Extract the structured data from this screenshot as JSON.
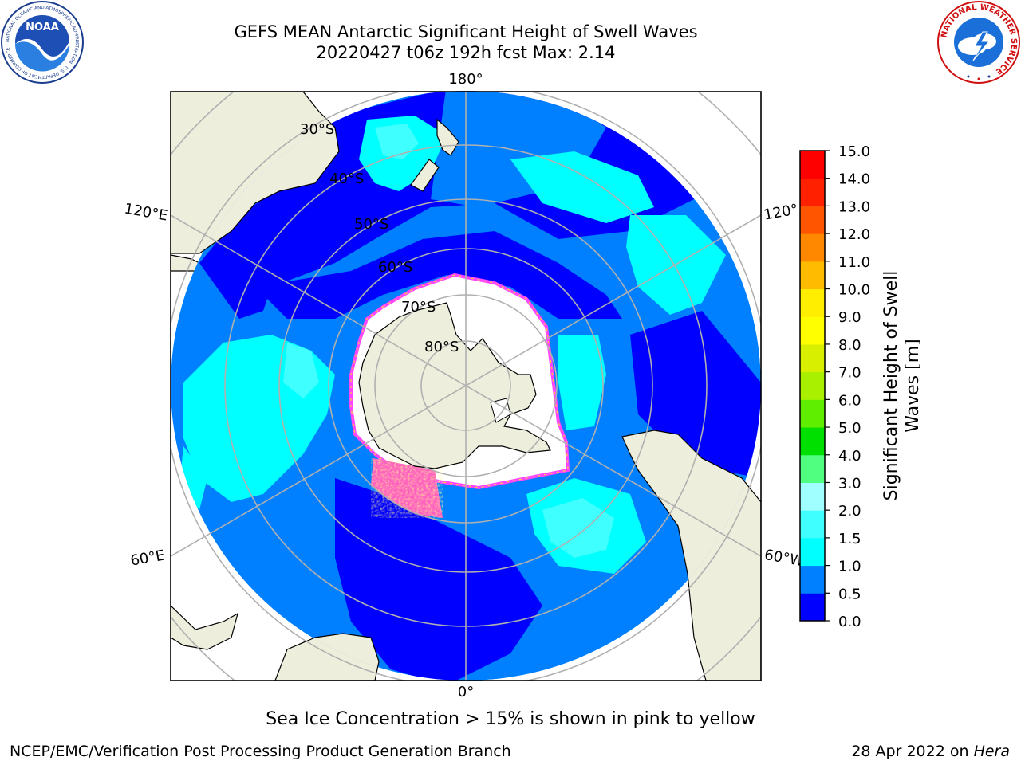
{
  "header": {
    "title_line1": "GEFS MEAN Antarctic Significant Height of Swell Waves",
    "title_line2": "20220427 t06z 192h fcst   Max: 2.14"
  },
  "map": {
    "projection": "south-polar-stereographic",
    "longitude_labels": [
      "180°",
      "120°E",
      "120°",
      "60°E",
      "60°W",
      "0°"
    ],
    "latitude_labels": [
      "30°S",
      "40°S",
      "50°S",
      "60°S",
      "70°S",
      "80°S"
    ]
  },
  "colorbar": {
    "label": "Significant Height of Swell Waves [m]",
    "label_line1": "Significant Height of Swell",
    "label_line2": "Waves [m]",
    "ticks": [
      "0.0",
      "0.5",
      "1.0",
      "1.5",
      "2.0",
      "3.0",
      "4.0",
      "5.0",
      "6.0",
      "7.0",
      "8.0",
      "9.0",
      "10.0",
      "11.0",
      "12.0",
      "13.0",
      "14.0",
      "15.0"
    ],
    "colors": [
      "#0000ff",
      "#0080ff",
      "#00ffff",
      "#40ffff",
      "#a0ffff",
      "#50ff80",
      "#00e000",
      "#60ee00",
      "#a8f000",
      "#d8f000",
      "#ffff00",
      "#ffee00",
      "#ffbb00",
      "#ff8800",
      "#ff5500",
      "#ff2000",
      "#ff0000"
    ]
  },
  "note": "Sea Ice Concentration > 15% is shown in pink to yellow",
  "footer": {
    "left": "NCEP/EMC/Verification Post Processing Product Generation Branch",
    "date": "28 Apr 2022 on ",
    "host": "Hera"
  },
  "logos": {
    "noaa_text": "NOAA",
    "noaa_ring": "NATIONAL OCEANIC AND ATMOSPHERIC ADMINISTRATION · U.S. DEPARTMENT OF COMMERCE",
    "nws_ring": "NATIONAL WEATHER SERVICE"
  }
}
